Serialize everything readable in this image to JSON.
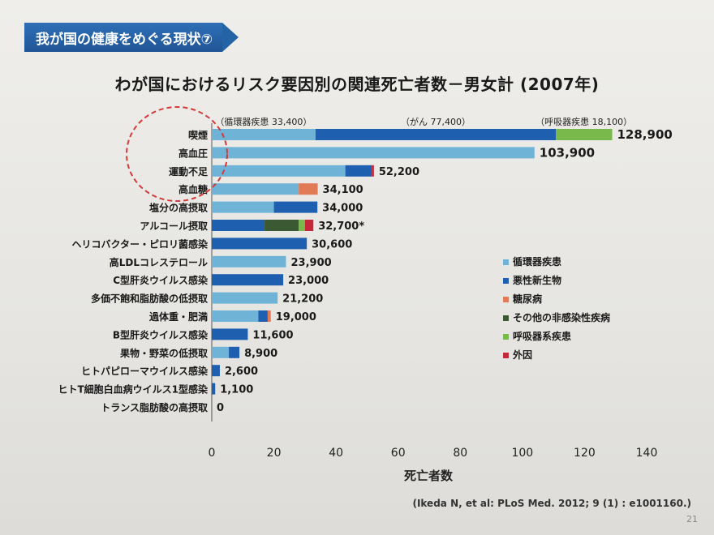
{
  "header": {
    "title": "我が国の健康をめぐる現状⑦"
  },
  "colors": {
    "circulatory": "#6fb3d6",
    "cancer": "#1f5fb0",
    "diabetes": "#e07b55",
    "other_ncd": "#3b5a33",
    "respiratory": "#79b84a",
    "external": "#c4283a",
    "circle": "#d33a3a"
  },
  "chart_data": {
    "type": "bar",
    "orientation": "horizontal",
    "stacked": true,
    "title": "わが国におけるリスク要因別の関連死亡者数－男女計 (2007年)",
    "xlabel": "死亡者数",
    "ylabel": "",
    "xlim": [
      0,
      140
    ],
    "xticks": [
      "0",
      "20",
      "40",
      "60",
      "80",
      "100",
      "120",
      "140"
    ],
    "legend_position": "right",
    "legend": [
      {
        "key": "circulatory",
        "label": "循環器疾患"
      },
      {
        "key": "cancer",
        "label": "悪性新生物"
      },
      {
        "key": "diabetes",
        "label": "糖尿病"
      },
      {
        "key": "other_ncd",
        "label": "その他の非感染性疾病"
      },
      {
        "key": "respiratory",
        "label": "呼吸器系疾患"
      },
      {
        "key": "external",
        "label": "外因"
      }
    ],
    "annotations": [
      {
        "text": "（循環器疾患 33,400）",
        "anchor_value": 16.7
      },
      {
        "text": "（がん 77,400）",
        "anchor_value": 72.1
      },
      {
        "text": "（呼吸器疾患 18,100）",
        "anchor_value": 119.8
      }
    ],
    "highlighted_categories": [
      "喫煙",
      "高血圧",
      "運動不足"
    ],
    "categories": [
      {
        "label": "喫煙",
        "total_label": "128,900",
        "segments": [
          {
            "s": "circulatory",
            "v": 33.4
          },
          {
            "s": "cancer",
            "v": 77.4
          },
          {
            "s": "respiratory",
            "v": 18.1
          }
        ]
      },
      {
        "label": "高血圧",
        "total_label": "103,900",
        "segments": [
          {
            "s": "circulatory",
            "v": 103.9
          }
        ]
      },
      {
        "label": "運動不足",
        "total_label": "52,200",
        "segments": [
          {
            "s": "circulatory",
            "v": 43.0
          },
          {
            "s": "cancer",
            "v": 8.5
          },
          {
            "s": "external",
            "v": 0.7
          }
        ]
      },
      {
        "label": "高血糖",
        "total_label": "34,100",
        "segments": [
          {
            "s": "circulatory",
            "v": 28.0
          },
          {
            "s": "diabetes",
            "v": 6.1
          }
        ]
      },
      {
        "label": "塩分の高摂取",
        "total_label": "34,000",
        "segments": [
          {
            "s": "circulatory",
            "v": 20.0
          },
          {
            "s": "cancer",
            "v": 14.0
          }
        ]
      },
      {
        "label": "アルコール摂取",
        "total_label": "32,700*",
        "segments": [
          {
            "s": "cancer",
            "v": 17.0
          },
          {
            "s": "other_ncd",
            "v": 11.0
          },
          {
            "s": "respiratory",
            "v": 2.0
          },
          {
            "s": "external",
            "v": 2.7
          }
        ]
      },
      {
        "label": "ヘリコバクター・ピロリ菌感染",
        "total_label": "30,600",
        "segments": [
          {
            "s": "cancer",
            "v": 30.6
          }
        ]
      },
      {
        "label": "高LDLコレステロール",
        "total_label": "23,900",
        "segments": [
          {
            "s": "circulatory",
            "v": 23.9
          }
        ]
      },
      {
        "label": "C型肝炎ウイルス感染",
        "total_label": "23,000",
        "segments": [
          {
            "s": "cancer",
            "v": 23.0
          }
        ]
      },
      {
        "label": "多価不飽和脂肪酸の低摂取",
        "total_label": "21,200",
        "segments": [
          {
            "s": "circulatory",
            "v": 21.2
          }
        ]
      },
      {
        "label": "過体重・肥満",
        "total_label": "19,000",
        "segments": [
          {
            "s": "circulatory",
            "v": 15.0
          },
          {
            "s": "cancer",
            "v": 3.0
          },
          {
            "s": "diabetes",
            "v": 1.0
          }
        ]
      },
      {
        "label": "B型肝炎ウイルス感染",
        "total_label": "11,600",
        "segments": [
          {
            "s": "cancer",
            "v": 11.6
          }
        ]
      },
      {
        "label": "果物・野菜の低摂取",
        "total_label": "8,900",
        "segments": [
          {
            "s": "circulatory",
            "v": 5.5
          },
          {
            "s": "cancer",
            "v": 3.4
          }
        ]
      },
      {
        "label": "ヒトパピローマウイルス感染",
        "total_label": "2,600",
        "segments": [
          {
            "s": "cancer",
            "v": 2.6
          }
        ]
      },
      {
        "label": "ヒトT細胞白血病ウイルス1型感染",
        "total_label": "1,100",
        "segments": [
          {
            "s": "cancer",
            "v": 1.1
          }
        ]
      },
      {
        "label": "トランス脂肪酸の高摂取",
        "total_label": "0",
        "segments": []
      }
    ]
  },
  "footer": {
    "citation": "(Ikeda N, et al: PLoS Med. 2012; 9 (1) : e1001160.)",
    "page_number": "21"
  }
}
